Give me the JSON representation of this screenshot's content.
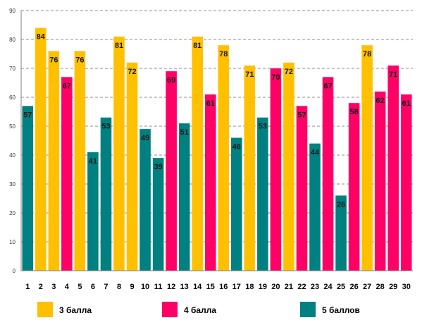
{
  "chart_data": {
    "type": "bar",
    "title": "",
    "xlabel": "",
    "ylabel": "",
    "ylim": [
      0,
      90
    ],
    "yticks": [
      0,
      10,
      20,
      30,
      40,
      50,
      60,
      70,
      80,
      90
    ],
    "grid": true,
    "legend_position": "bottom",
    "categories": [
      "1",
      "2",
      "3",
      "4",
      "5",
      "6",
      "7",
      "8",
      "9",
      "10",
      "11",
      "12",
      "13",
      "14",
      "15",
      "16",
      "17",
      "18",
      "19",
      "20",
      "21",
      "22",
      "23",
      "24",
      "25",
      "26",
      "27",
      "28",
      "29",
      "30"
    ],
    "values": [
      57,
      84,
      76,
      67,
      76,
      41,
      53,
      81,
      72,
      49,
      39,
      69,
      51,
      81,
      61,
      78,
      46,
      71,
      53,
      70,
      72,
      57,
      44,
      67,
      26,
      58,
      78,
      62,
      71,
      61
    ],
    "grades": [
      "5",
      "3",
      "3",
      "4",
      "3",
      "5",
      "5",
      "3",
      "3",
      "5",
      "5",
      "4",
      "5",
      "3",
      "4",
      "3",
      "5",
      "3",
      "5",
      "4",
      "3",
      "4",
      "5",
      "4",
      "5",
      "4",
      "3",
      "4",
      "4",
      "4"
    ],
    "series": [
      {
        "key": "3",
        "name": "3 балла",
        "color": "#FFC000"
      },
      {
        "key": "4",
        "name": "4 балла",
        "color": "#FF0066"
      },
      {
        "key": "5",
        "name": "5 баллов",
        "color": "#008080"
      }
    ]
  }
}
